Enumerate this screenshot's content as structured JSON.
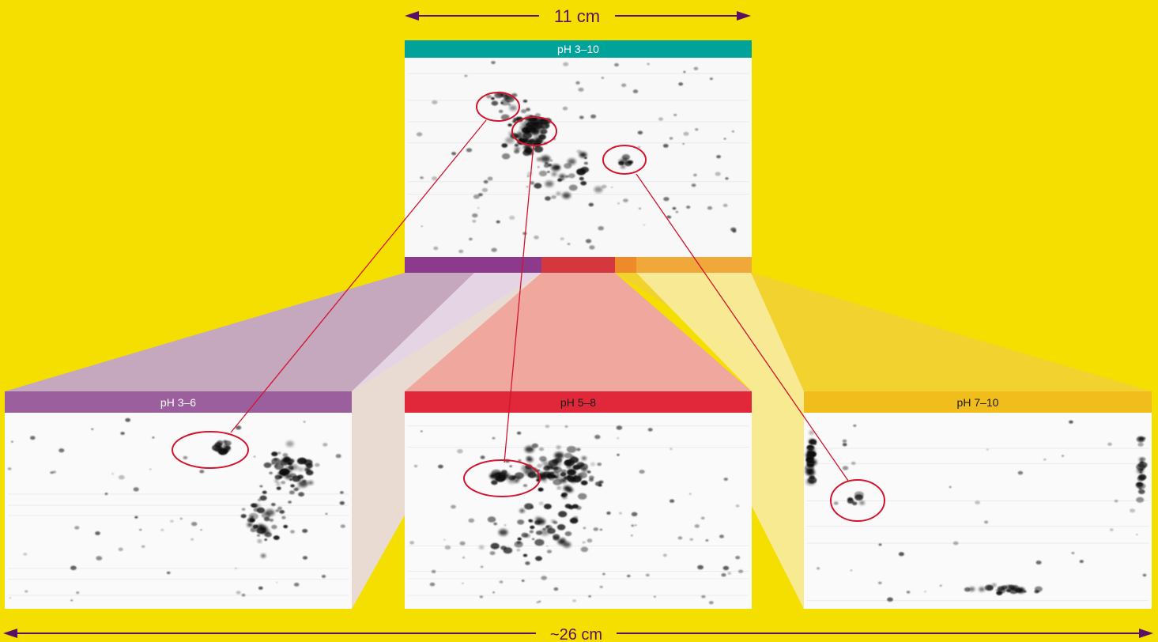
{
  "dimensions": {
    "top_width": "11 cm",
    "total_width": "~26 cm"
  },
  "gels": {
    "full": {
      "label": "pH 3–10",
      "color": "#00a39a"
    },
    "acidic": {
      "label": "pH 3–6",
      "color": "#9c5f9e"
    },
    "neutral": {
      "label": "pH 5–8",
      "color": "#e1283a"
    },
    "basic": {
      "label": "pH 7–10",
      "color": "#f0bd1c"
    }
  },
  "colors": {
    "background": "#f5df00",
    "arrow": "#5a1065",
    "circle": "#d2142e"
  }
}
